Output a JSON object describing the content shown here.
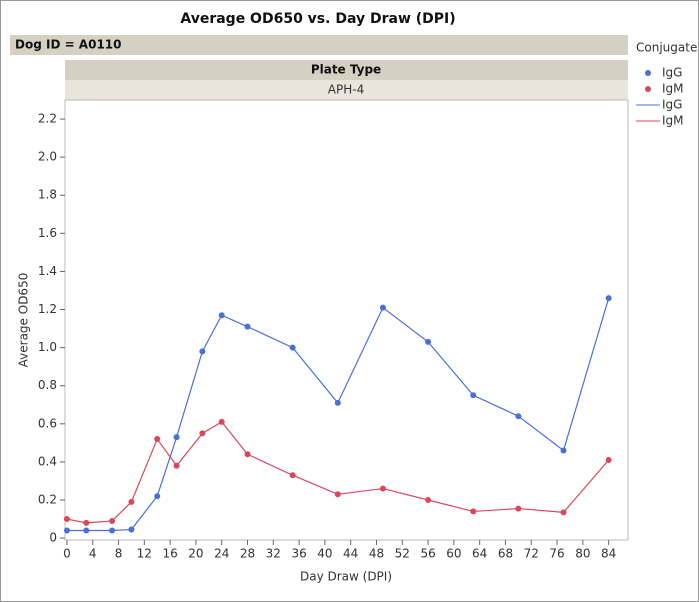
{
  "chart_data": {
    "type": "line",
    "title": "Average OD650 vs. Day Draw (DPI)",
    "group_label": "Dog ID = A0110",
    "panel_header": "Plate Type",
    "panel_label": "APH-4",
    "legend_title": "Conjugate",
    "x_label": "Day Draw (DPI)",
    "y_label": "Average OD650",
    "x": [
      0,
      3,
      7,
      10,
      14,
      17,
      21,
      24,
      28,
      35,
      42,
      49,
      56,
      63,
      70,
      77,
      84
    ],
    "series": [
      {
        "name": "IgG",
        "color": "#4a6fd8",
        "values": [
          0.04,
          0.04,
          0.04,
          0.045,
          0.22,
          0.53,
          0.98,
          1.17,
          1.11,
          1.0,
          0.71,
          1.21,
          1.03,
          0.75,
          0.64,
          0.46,
          1.26
        ]
      },
      {
        "name": "IgM",
        "color": "#d9475a",
        "values": [
          0.1,
          0.08,
          0.09,
          0.19,
          0.52,
          0.38,
          0.55,
          0.61,
          0.44,
          0.33,
          0.23,
          0.26,
          0.2,
          0.14,
          0.155,
          0.135,
          0.41
        ]
      }
    ],
    "xlim": [
      -0.3,
      87
    ],
    "xticks": [
      0,
      4,
      8,
      12,
      16,
      20,
      24,
      28,
      32,
      36,
      40,
      44,
      48,
      52,
      56,
      60,
      64,
      68,
      72,
      76,
      80,
      84
    ],
    "ylim": [
      -0.01,
      2.3
    ],
    "yticks": [
      0,
      0.2,
      0.4,
      0.6,
      0.8,
      {
        "value": 1,
        "label": "1.0"
      },
      1.2,
      1.4,
      1.6,
      1.8,
      {
        "value": 2,
        "label": "2.0"
      },
      2.2
    ]
  }
}
